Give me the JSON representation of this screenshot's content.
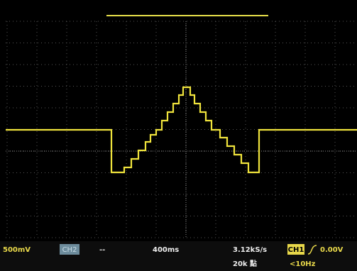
{
  "status_bar": {
    "ch1_scale": "500mV",
    "ch2_label": "CH2",
    "ch2_scale": "--",
    "timebase": "400ms",
    "sample_rate": "3.12kS/s",
    "record_length": "20k 點",
    "trigger_source": "CH1",
    "trigger_level": "0.00V",
    "trigger_frequency": "<10Hz"
  }
}
